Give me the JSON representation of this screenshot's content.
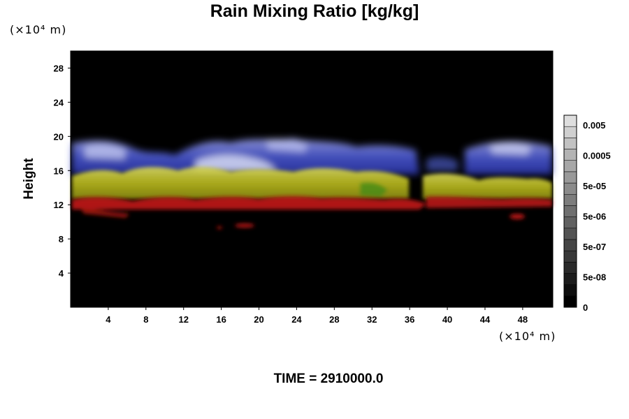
{
  "chart_data": {
    "type": "heatmap",
    "title": "Rain Mixing Ratio [kg/kg]",
    "ylabel": "Height",
    "y_unit": "(×10⁴ m)",
    "x_unit": "(×10⁴ m)",
    "x_ticks": [
      "4",
      "8",
      "12",
      "16",
      "20",
      "24",
      "28",
      "32",
      "36",
      "40",
      "44",
      "48"
    ],
    "y_ticks": [
      "4",
      "8",
      "12",
      "16",
      "20",
      "24",
      "28"
    ],
    "xlim": [
      0,
      51.2
    ],
    "ylim": [
      0,
      30
    ],
    "colorbar": {
      "labels": [
        "0.005",
        "0.0005",
        "5e-05",
        "5e-06",
        "5e-07",
        "5e-08",
        "0"
      ],
      "levels": 17
    },
    "background_color": "#000000",
    "layers": [
      {
        "name": "red (lower rain band)",
        "color": "#c41a16",
        "y_range": [
          11,
          13
        ]
      },
      {
        "name": "yellow (middle band)",
        "color": "#c8c828",
        "y_range": [
          12.5,
          16.5
        ]
      },
      {
        "name": "blue/white (upper band)",
        "color": "#5060d8",
        "y_range": [
          15.5,
          19.5
        ]
      }
    ]
  },
  "footer": {
    "time_label": "TIME = 2910000.0"
  }
}
